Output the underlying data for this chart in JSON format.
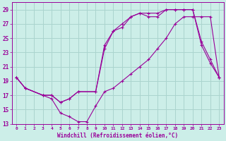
{
  "background_color": "#cceee8",
  "grid_color": "#aad4ce",
  "line_color": "#990099",
  "marker": "+",
  "xlabel": "Windchill (Refroidissement éolien,°C)",
  "xlim": [
    -0.5,
    23.5
  ],
  "ylim": [
    13,
    30
  ],
  "yticks": [
    13,
    15,
    17,
    19,
    21,
    23,
    25,
    27,
    29
  ],
  "xticks": [
    0,
    1,
    2,
    3,
    4,
    5,
    6,
    7,
    8,
    9,
    10,
    11,
    12,
    13,
    14,
    15,
    16,
    17,
    18,
    19,
    20,
    21,
    22,
    23
  ],
  "line1_x": [
    0,
    1,
    3,
    4,
    5,
    6,
    7,
    8,
    9,
    10,
    11,
    12,
    13,
    14,
    15,
    16,
    17,
    18,
    19,
    20,
    21,
    22,
    23
  ],
  "line1_y": [
    19.5,
    18.0,
    17.0,
    16.5,
    14.5,
    14.0,
    13.3,
    13.3,
    15.5,
    17.5,
    18.0,
    19.0,
    20.0,
    21.0,
    22.0,
    23.5,
    25.0,
    27.0,
    28.0,
    28.0,
    28.0,
    28.0,
    19.5
  ],
  "line2_x": [
    0,
    1,
    3,
    4,
    5,
    6,
    7,
    9,
    10,
    11,
    12,
    13,
    14,
    15,
    16,
    17,
    18,
    19,
    20,
    21,
    22,
    23
  ],
  "line2_y": [
    19.5,
    18.0,
    17.0,
    17.0,
    16.0,
    16.5,
    17.5,
    17.5,
    23.5,
    26.0,
    26.5,
    28.0,
    28.5,
    28.0,
    28.0,
    29.0,
    29.0,
    29.0,
    29.0,
    24.0,
    21.5,
    19.5
  ],
  "line3_x": [
    0,
    1,
    3,
    4,
    5,
    6,
    7,
    9,
    10,
    11,
    12,
    13,
    14,
    15,
    16,
    17,
    18,
    19,
    20,
    21,
    22,
    23
  ],
  "line3_y": [
    19.5,
    18.0,
    17.0,
    17.0,
    16.0,
    16.5,
    17.5,
    17.5,
    24.0,
    26.0,
    27.0,
    28.0,
    28.5,
    28.5,
    28.5,
    29.0,
    29.0,
    29.0,
    29.0,
    24.5,
    22.0,
    19.5
  ]
}
